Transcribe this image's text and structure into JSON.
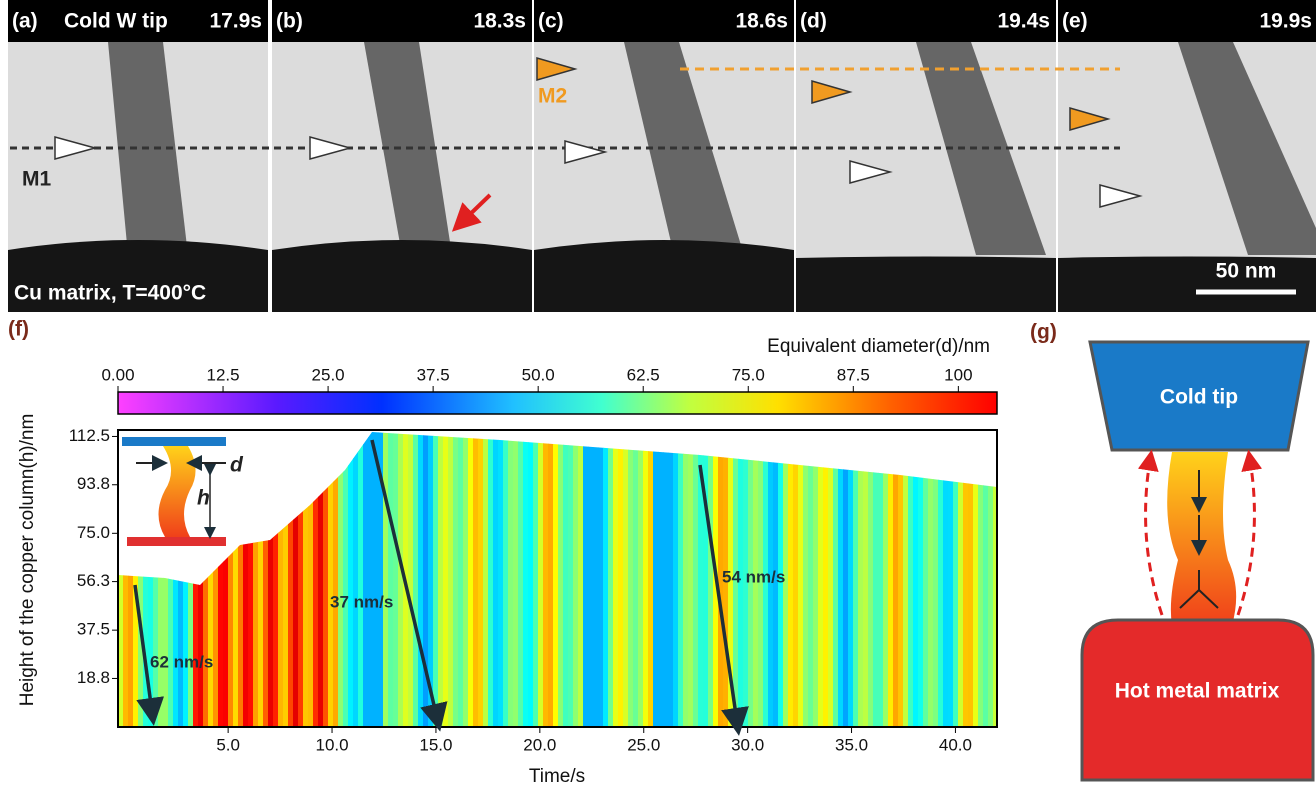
{
  "panels": [
    {
      "label": "(a)",
      "title": "Cold W tip",
      "time": "17.9s",
      "marker": "M1",
      "note": "Cu matrix, T=400°C"
    },
    {
      "label": "(b)",
      "time": "18.3s"
    },
    {
      "label": "(c)",
      "time": "18.6s",
      "marker": "M2"
    },
    {
      "label": "(d)",
      "time": "19.4s"
    },
    {
      "label": "(e)",
      "time": "19.9s",
      "scale_bar": "50 nm"
    }
  ],
  "chart_data": {
    "type": "heatmap",
    "label": "(f)",
    "colorbar_label": "Equivalent diameter(d)/nm",
    "clim": [
      0,
      104.6
    ],
    "cticks": [
      {
        "value": 0,
        "label": "0.00"
      },
      12.5,
      {
        "value": 25,
        "label": "25.0"
      },
      37.5,
      {
        "value": 50,
        "label": "50.0"
      },
      62.5,
      {
        "value": 75,
        "label": "75.0"
      },
      87.5,
      100
    ],
    "xlabel": "Time/s",
    "ylabel": "Height of the copper column(h)/nm",
    "xlim": [
      -0.3,
      42
    ],
    "ylim": [
      0,
      115
    ],
    "xticks": [
      {
        "value": 5,
        "label": "5.0"
      },
      {
        "value": 10,
        "label": "10.0"
      },
      {
        "value": 15,
        "label": "15.0"
      },
      {
        "value": 20,
        "label": "20.0"
      },
      {
        "value": 25,
        "label": "25.0"
      },
      {
        "value": 30,
        "label": "30.0"
      },
      {
        "value": 35,
        "label": "35.0"
      },
      {
        "value": 40,
        "label": "40.0"
      }
    ],
    "yticks": [
      18.8,
      37.5,
      56.3,
      {
        "value": 75,
        "label": "75.0"
      },
      93.8,
      112.5
    ],
    "annotations": [
      "62 nm/s",
      "37 nm/s",
      "54 nm/s"
    ],
    "inset_labels": [
      "d",
      "h"
    ]
  },
  "diagram": {
    "label": "(g)",
    "top": "Cold tip",
    "bottom": "Hot metal matrix"
  }
}
